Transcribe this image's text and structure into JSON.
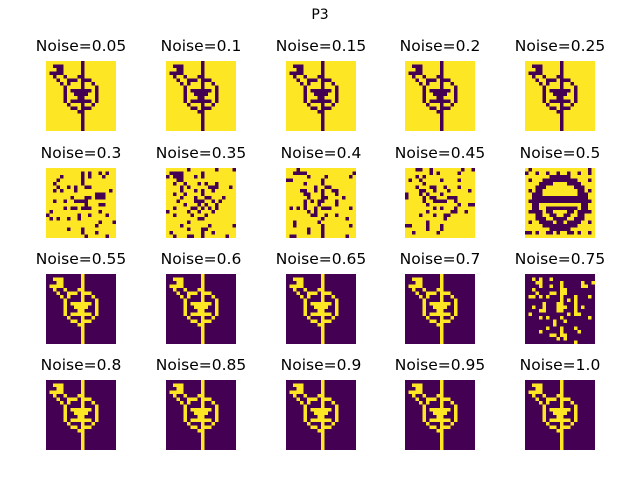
{
  "chart_data": {
    "type": "heatmap",
    "title": "P3",
    "colors": {
      "low": "#440154",
      "high": "#fde725"
    },
    "grid": {
      "rows": 4,
      "cols": 5
    },
    "panels": [
      {
        "label": "Noise=0.05",
        "noise": 0.05,
        "variant": "normal"
      },
      {
        "label": "Noise=0.1",
        "noise": 0.1,
        "variant": "normal"
      },
      {
        "label": "Noise=0.15",
        "noise": 0.15,
        "variant": "normal"
      },
      {
        "label": "Noise=0.2",
        "noise": 0.2,
        "variant": "normal"
      },
      {
        "label": "Noise=0.25",
        "noise": 0.25,
        "variant": "normal"
      },
      {
        "label": "Noise=0.3",
        "noise": 0.3,
        "variant": "scrambled"
      },
      {
        "label": "Noise=0.35",
        "noise": 0.35,
        "variant": "scrambled"
      },
      {
        "label": "Noise=0.4",
        "noise": 0.4,
        "variant": "scrambled"
      },
      {
        "label": "Noise=0.45",
        "noise": 0.45,
        "variant": "scrambled"
      },
      {
        "label": "Noise=0.5",
        "noise": 0.5,
        "variant": "other"
      },
      {
        "label": "Noise=0.55",
        "noise": 0.55,
        "variant": "inverted"
      },
      {
        "label": "Noise=0.6",
        "noise": 0.6,
        "variant": "inverted"
      },
      {
        "label": "Noise=0.65",
        "noise": 0.65,
        "variant": "inverted"
      },
      {
        "label": "Noise=0.7",
        "noise": 0.7,
        "variant": "inverted"
      },
      {
        "label": "Noise=0.75",
        "noise": 0.75,
        "variant": "scrambled-inverted"
      },
      {
        "label": "Noise=0.8",
        "noise": 0.8,
        "variant": "inverted"
      },
      {
        "label": "Noise=0.85",
        "noise": 0.85,
        "variant": "inverted"
      },
      {
        "label": "Noise=0.9",
        "noise": 0.9,
        "variant": "inverted"
      },
      {
        "label": "Noise=0.95",
        "noise": 0.95,
        "variant": "inverted"
      },
      {
        "label": "Noise=1.0",
        "noise": 1.0,
        "variant": "inverted"
      }
    ]
  }
}
